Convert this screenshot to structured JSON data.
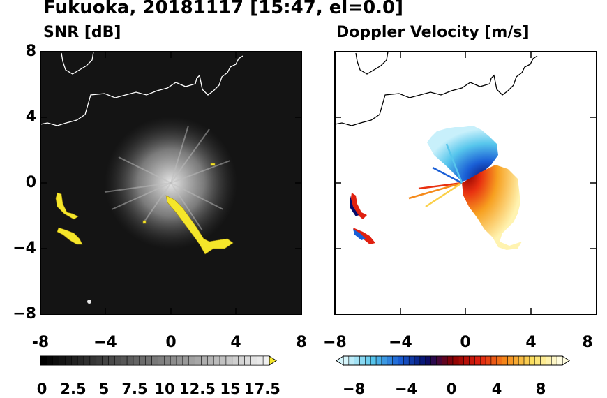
{
  "figure_title": "Fukuoka, 20181117 [15:47, el=0.0]",
  "chart_data": [
    {
      "type": "heatmap",
      "title": "SNR [dB]",
      "xlim": [
        -8,
        8
      ],
      "ylim": [
        -8,
        8
      ],
      "xticks": [
        "-8",
        "−4",
        "0",
        "4",
        "8"
      ],
      "yticks": [
        "8",
        "4",
        "0",
        "−4",
        "−8"
      ],
      "colorbar": {
        "min": 0,
        "max": 18.5,
        "extend": "max",
        "tick_labels": [
          "0",
          "2.5",
          "5",
          "7.5",
          "10",
          "12.5",
          "15",
          "17.5"
        ],
        "tick_values": [
          0,
          2.5,
          5,
          7.5,
          10,
          12.5,
          15,
          17.5
        ],
        "colors": [
          "#000000",
          "#ffffff",
          "#f5e62a"
        ]
      }
    },
    {
      "type": "heatmap",
      "title": "Doppler Velocity [m/s]",
      "xlim": [
        -8,
        8
      ],
      "ylim": [
        -8,
        8
      ],
      "xticks": [
        "−8",
        "−4",
        "0",
        "4",
        "8"
      ],
      "yticks": [
        "8",
        "4",
        "0",
        "−4",
        "−8"
      ],
      "colorbar": {
        "min": -10,
        "max": 10,
        "extend": "both",
        "tick_labels": [
          "−8",
          "−4",
          "0",
          "4",
          "8"
        ],
        "tick_values": [
          -8,
          -4,
          0,
          4,
          8
        ],
        "colors": [
          "#d6f5fb",
          "#57c6ec",
          "#1a5fd6",
          "#040c6b",
          "#8b0000",
          "#e02010",
          "#f58a1a",
          "#fbe060",
          "#fffde0"
        ]
      }
    }
  ]
}
